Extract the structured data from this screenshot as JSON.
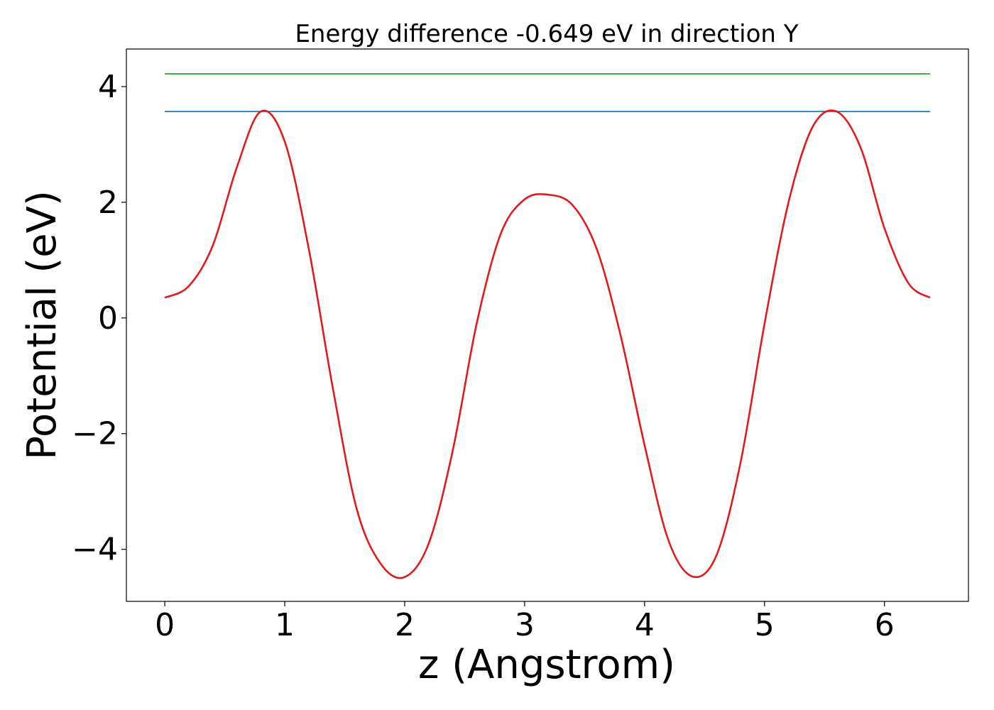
{
  "chart_data": {
    "type": "line",
    "title": "Energy difference -0.649 eV in direction Y",
    "xlabel": "z (Angstrom)",
    "ylabel": "Potential (eV)",
    "xlim": [
      -0.32,
      6.7
    ],
    "ylim": [
      -4.9,
      4.65
    ],
    "xticks": [
      0,
      1,
      2,
      3,
      4,
      5,
      6
    ],
    "xtick_labels": [
      "0",
      "1",
      "2",
      "3",
      "4",
      "5",
      "6"
    ],
    "yticks": [
      -4,
      -2,
      0,
      2,
      4
    ],
    "ytick_labels": [
      "−4",
      "−2",
      "0",
      "2",
      "4"
    ],
    "grid": false,
    "series": [
      {
        "color": "#2ca02c",
        "style": "line",
        "x": [
          0,
          6.38
        ],
        "y": [
          4.22,
          4.22
        ]
      },
      {
        "color": "#1f77b4",
        "style": "line",
        "x": [
          0,
          6.38
        ],
        "y": [
          3.57,
          3.57
        ]
      },
      {
        "color": "#e31a1c",
        "style": "line",
        "x": [
          0.0,
          0.2,
          0.4,
          0.6,
          0.8,
          1.0,
          1.2,
          1.4,
          1.6,
          1.8,
          2.0,
          2.2,
          2.4,
          2.6,
          2.8,
          3.0,
          3.2,
          3.4,
          3.6,
          3.8,
          4.0,
          4.2,
          4.4,
          4.6,
          4.8,
          5.0,
          5.2,
          5.4,
          5.6,
          5.8,
          6.0,
          6.2,
          6.38
        ],
        "y": [
          0.35,
          0.55,
          1.25,
          2.6,
          3.57,
          3.05,
          1.2,
          -1.2,
          -3.3,
          -4.25,
          -4.48,
          -3.9,
          -2.3,
          -0.1,
          1.45,
          2.05,
          2.13,
          1.95,
          1.2,
          -0.3,
          -2.2,
          -3.85,
          -4.47,
          -4.1,
          -2.5,
          -0.1,
          2.0,
          3.3,
          3.57,
          2.95,
          1.55,
          0.6,
          0.35
        ]
      }
    ]
  }
}
